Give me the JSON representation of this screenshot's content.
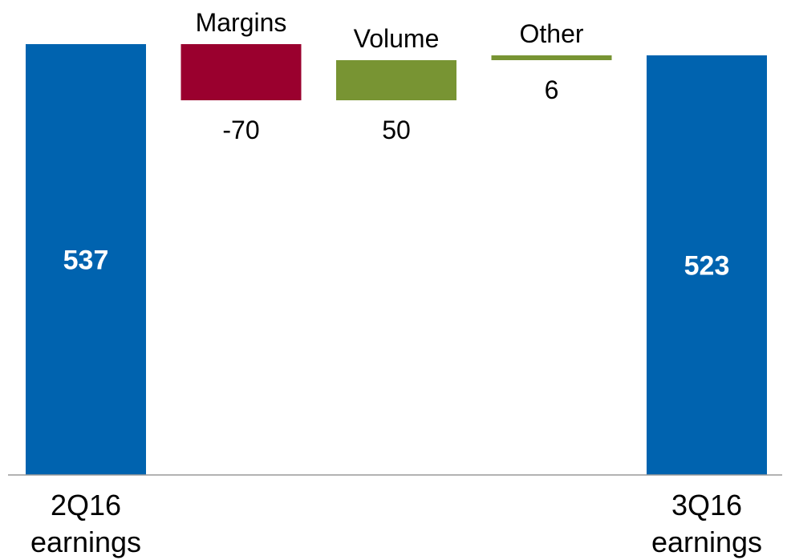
{
  "chart_data": {
    "type": "waterfall",
    "items": [
      {
        "key": "start",
        "kind": "total",
        "label": "",
        "bottom_label": [
          "2Q16",
          "earnings"
        ],
        "value": 537,
        "value_text": "537"
      },
      {
        "key": "margins",
        "kind": "delta",
        "label": "Margins",
        "bottom_label": [],
        "value": -70,
        "value_text": "-70"
      },
      {
        "key": "volume",
        "kind": "delta",
        "label": "Volume",
        "bottom_label": [],
        "value": 50,
        "value_text": "50"
      },
      {
        "key": "other",
        "kind": "delta",
        "label": "Other",
        "bottom_label": [],
        "value": 6,
        "value_text": "6"
      },
      {
        "key": "end",
        "kind": "total",
        "label": "",
        "bottom_label": [
          "3Q16",
          "earnings"
        ],
        "value": 523,
        "value_text": "523"
      }
    ],
    "colors": {
      "total": "#0063AF",
      "negative": "#9A002E",
      "positive": "#789433",
      "baseline": "#9A9A9A"
    },
    "title": "",
    "xlabel": "",
    "ylabel": ""
  }
}
